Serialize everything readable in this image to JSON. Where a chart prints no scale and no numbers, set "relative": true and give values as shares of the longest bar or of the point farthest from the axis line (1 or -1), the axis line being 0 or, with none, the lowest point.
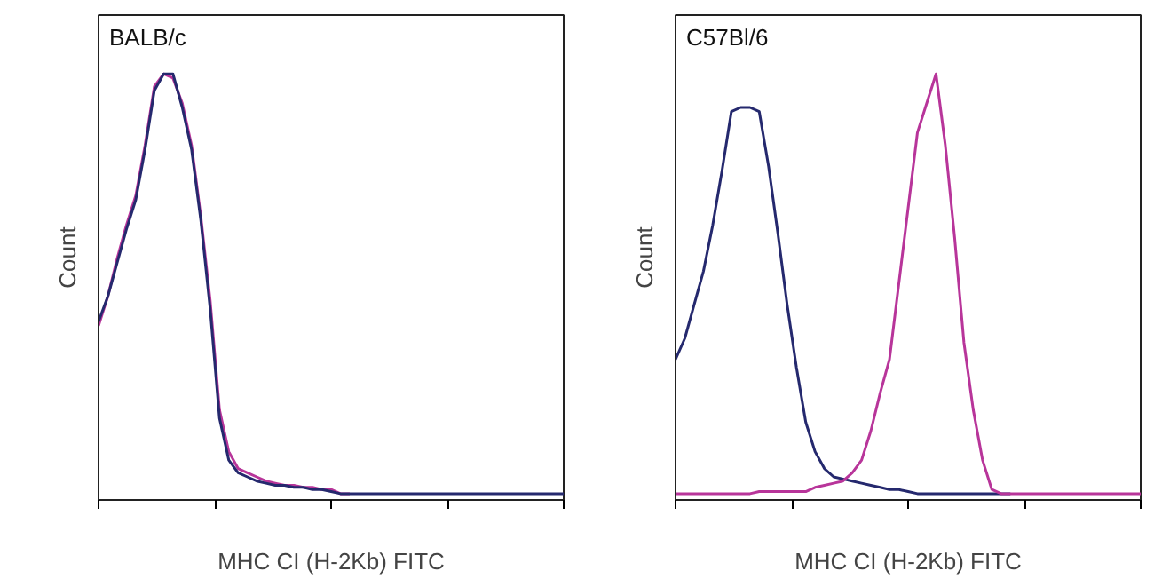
{
  "chart_data": [
    {
      "type": "line",
      "title": "BALB/c",
      "xlabel": "MHC CI (H-2Kb) FITC",
      "ylabel": "Count",
      "relative": true,
      "tick_labels": false,
      "categories": [
        null,
        null,
        null,
        null,
        null,
        null,
        null,
        null,
        null,
        null,
        null,
        null,
        null,
        null,
        null,
        null,
        null,
        null,
        null,
        null,
        null,
        null,
        null,
        null,
        null,
        null,
        null,
        null,
        null,
        null,
        null,
        null,
        null,
        null,
        null,
        null,
        null,
        null,
        null,
        null,
        null,
        null,
        null,
        null,
        null,
        null,
        null,
        null,
        null,
        null,
        null
      ],
      "series": [
        {
          "color": "#b8359a",
          "values": [
            0.4,
            0.47,
            0.56,
            0.64,
            0.71,
            0.83,
            0.97,
            1.0,
            0.99,
            0.93,
            0.83,
            0.66,
            0.46,
            0.2,
            0.1,
            0.06,
            0.05,
            0.04,
            0.03,
            0.025,
            0.02,
            0.02,
            0.015,
            0.015,
            0.01,
            0.01,
            0,
            0,
            null,
            null,
            null,
            null,
            null,
            null,
            null,
            null,
            null,
            null,
            null,
            null,
            null,
            null,
            null,
            null,
            null,
            null,
            null,
            null,
            null,
            null,
            null
          ]
        },
        {
          "color": "#25296e",
          "values": [
            0.41,
            0.47,
            0.55,
            0.63,
            0.7,
            0.82,
            0.96,
            1.0,
            1.0,
            0.92,
            0.82,
            0.65,
            0.44,
            0.18,
            0.08,
            0.05,
            0.04,
            0.03,
            0.025,
            0.02,
            0.02,
            0.015,
            0.015,
            0.01,
            0.01,
            0.005,
            0,
            0,
            0,
            0,
            0,
            0,
            0,
            0,
            0,
            0,
            0,
            0,
            0,
            0,
            0,
            0,
            0,
            0,
            0,
            0,
            0,
            0,
            0,
            0,
            0
          ]
        }
      ]
    },
    {
      "type": "line",
      "title": "C57Bl/6",
      "xlabel": "MHC CI (H-2Kb) FITC",
      "ylabel": "Count",
      "relative": true,
      "tick_labels": false,
      "categories": [
        null,
        null,
        null,
        null,
        null,
        null,
        null,
        null,
        null,
        null,
        null,
        null,
        null,
        null,
        null,
        null,
        null,
        null,
        null,
        null,
        null,
        null,
        null,
        null,
        null,
        null,
        null,
        null,
        null,
        null,
        null,
        null,
        null,
        null,
        null,
        null,
        null,
        null,
        null,
        null,
        null,
        null,
        null,
        null,
        null,
        null,
        null,
        null,
        null,
        null,
        null
      ],
      "series": [
        {
          "color": "#25296e",
          "values": [
            0.32,
            0.37,
            0.45,
            0.53,
            0.64,
            0.77,
            0.91,
            0.92,
            0.92,
            0.91,
            0.78,
            0.62,
            0.45,
            0.3,
            0.17,
            0.1,
            0.06,
            0.04,
            0.035,
            0.03,
            0.025,
            0.02,
            0.015,
            0.01,
            0.01,
            0.005,
            0,
            0,
            0,
            0,
            0,
            0,
            0,
            0,
            0,
            0,
            0,
            null,
            null,
            null,
            null,
            null,
            null,
            null,
            null,
            null,
            null,
            null,
            null,
            null,
            null
          ]
        },
        {
          "color": "#b8359a",
          "values": [
            0,
            0,
            0,
            0,
            0,
            0,
            0,
            0,
            0,
            0.005,
            0.005,
            0.005,
            0.005,
            0.005,
            0.005,
            0.015,
            0.02,
            0.025,
            0.03,
            0.05,
            0.08,
            0.15,
            0.24,
            0.32,
            0.5,
            0.68,
            0.86,
            0.93,
            1.0,
            0.83,
            0.61,
            0.36,
            0.2,
            0.08,
            0.01,
            0,
            0,
            0,
            0,
            0,
            0,
            0,
            0,
            0,
            0,
            0,
            0,
            0,
            0,
            0,
            0
          ]
        }
      ]
    }
  ]
}
